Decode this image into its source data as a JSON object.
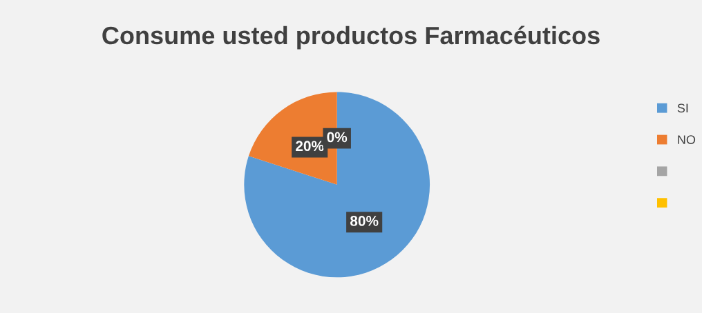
{
  "chart_data": {
    "type": "pie",
    "title": "Consume usted productos Farmacéuticos",
    "categories": [
      "SI",
      "NO",
      null,
      null
    ],
    "values": [
      80,
      20,
      0,
      0
    ],
    "colors": [
      "#5b9bd5",
      "#ed7d31",
      "#a5a5a5",
      "#ffc000"
    ],
    "value_labels": [
      "80%",
      "20%",
      "0%",
      null
    ],
    "legend": "right"
  }
}
